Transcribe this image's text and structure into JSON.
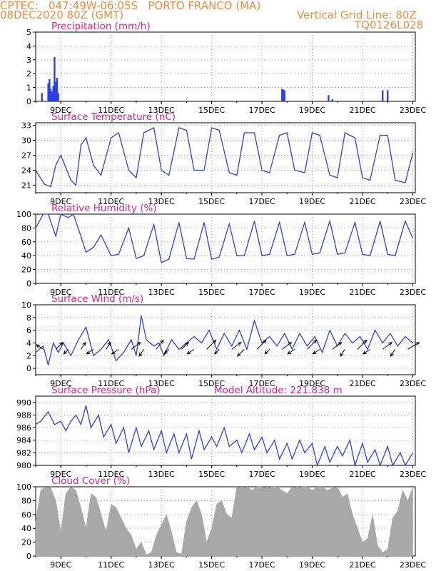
{
  "header": {
    "line1": "CPTEC:   047:49W-06:05S   PORTO FRANCO (MA)",
    "line2": "08DEC2020 80Z (GMT)",
    "grid_note": "Vertical Grid Line: 80Z",
    "code": "TQ0126L028"
  },
  "colors": {
    "header": "#f08a3c",
    "title": "#e0208a",
    "series": "#2a40e6",
    "cloud": "#a8a8a8",
    "wind_arrow": "#000000"
  },
  "x_axis": {
    "ticks": [
      "9DEC",
      "11DEC",
      "13DEC",
      "15DEC",
      "17DEC",
      "19DEC",
      "21DEC",
      "23DEC"
    ],
    "tick_days": [
      1,
      3,
      5,
      7,
      9,
      11,
      13,
      15
    ],
    "range_days": [
      0,
      15.1
    ]
  },
  "chart_data": [
    {
      "id": "precip",
      "type": "bar",
      "title": "Precipitation (mm/h)",
      "ylim": [
        0,
        5
      ],
      "yticks": [
        0,
        1,
        2,
        3,
        4,
        5
      ],
      "x": [
        0.25,
        0.5,
        0.55,
        0.6,
        0.65,
        0.7,
        0.75,
        0.8,
        0.85,
        0.9,
        1.0,
        4.0,
        7.0,
        9.8,
        9.85,
        9.9,
        11.65,
        11.8,
        13.8,
        14.0
      ],
      "values": [
        0.6,
        1.3,
        1.6,
        0.9,
        0.7,
        1.1,
        3.2,
        1.4,
        1.7,
        0.6,
        0.05,
        0.05,
        0.05,
        0.9,
        0.85,
        0.8,
        0.45,
        0.15,
        0.8,
        0.8
      ]
    },
    {
      "id": "temp",
      "type": "line",
      "title": "Surface Temperature (nC)",
      "ylim": [
        19.5,
        33.5
      ],
      "yticks": [
        21,
        24,
        27,
        30,
        33
      ],
      "x": [
        0.0,
        0.35,
        0.6,
        0.8,
        1.0,
        1.4,
        1.6,
        1.8,
        2.0,
        2.3,
        2.6,
        3.0,
        3.3,
        3.7,
        4.0,
        4.3,
        4.7,
        5.0,
        5.3,
        5.7,
        6.0,
        6.3,
        6.7,
        7.0,
        7.3,
        7.7,
        8.0,
        8.3,
        8.7,
        9.0,
        9.3,
        9.7,
        10.0,
        10.3,
        10.7,
        11.0,
        11.3,
        11.7,
        12.0,
        12.3,
        12.7,
        13.0,
        13.3,
        13.7,
        14.0,
        14.3,
        14.7,
        15.0
      ],
      "values": [
        24.0,
        21.2,
        20.7,
        25.0,
        27.0,
        22.0,
        21.0,
        29.0,
        30.5,
        25.0,
        23.0,
        30.5,
        31.5,
        24.0,
        22.5,
        31.5,
        32.5,
        24.0,
        23.0,
        32.5,
        32.0,
        24.0,
        24.0,
        32.5,
        32.0,
        23.5,
        23.0,
        31.5,
        31.5,
        24.0,
        23.5,
        31.0,
        31.5,
        24.0,
        23.5,
        31.5,
        31.0,
        23.0,
        22.5,
        31.5,
        30.5,
        22.5,
        22.0,
        31.0,
        31.0,
        22.0,
        21.5,
        27.5
      ]
    },
    {
      "id": "rh",
      "type": "line",
      "title": "Relative Humidity (%)",
      "ylim": [
        0,
        100
      ],
      "yticks": [
        0,
        20,
        40,
        60,
        80,
        100
      ],
      "x": [
        0.0,
        0.3,
        0.5,
        0.8,
        1.0,
        1.3,
        1.5,
        1.8,
        2.0,
        2.3,
        2.6,
        3.0,
        3.3,
        3.7,
        4.0,
        4.3,
        4.7,
        5.0,
        5.3,
        5.7,
        6.0,
        6.3,
        6.7,
        7.0,
        7.3,
        7.7,
        8.0,
        8.3,
        8.7,
        9.0,
        9.3,
        9.7,
        10.0,
        10.3,
        10.7,
        11.0,
        11.3,
        11.7,
        12.0,
        12.3,
        12.7,
        13.0,
        13.3,
        13.7,
        14.0,
        14.3,
        14.7,
        15.0
      ],
      "values": [
        80,
        100,
        100,
        68,
        100,
        95,
        100,
        68,
        45,
        52,
        70,
        40,
        42,
        80,
        36,
        40,
        85,
        30,
        35,
        88,
        36,
        35,
        88,
        35,
        38,
        86,
        40,
        40,
        90,
        40,
        42,
        88,
        40,
        42,
        88,
        42,
        44,
        90,
        42,
        44,
        88,
        42,
        40,
        90,
        42,
        40,
        90,
        65
      ]
    },
    {
      "id": "wind",
      "type": "line",
      "title": "Surface Wind (m/s)",
      "ylim": [
        -1,
        10
      ],
      "yticks": [
        0,
        2,
        4,
        6,
        8,
        10
      ],
      "x": [
        0.0,
        0.3,
        0.5,
        0.7,
        0.9,
        1.1,
        1.4,
        1.7,
        2.0,
        2.3,
        2.6,
        2.9,
        3.2,
        3.5,
        3.8,
        4.0,
        4.2,
        4.4,
        4.7,
        4.9,
        5.1,
        5.4,
        5.7,
        6.0,
        6.3,
        6.6,
        6.9,
        7.2,
        7.5,
        7.8,
        8.1,
        8.4,
        8.7,
        9.0,
        9.3,
        9.6,
        9.9,
        10.2,
        10.5,
        10.8,
        11.1,
        11.4,
        11.7,
        12.0,
        12.3,
        12.6,
        12.9,
        13.2,
        13.5,
        13.8,
        14.1,
        14.4,
        14.7,
        15.0
      ],
      "values": [
        2.5,
        3.5,
        0.5,
        4.0,
        2.5,
        4.0,
        2.0,
        4.5,
        6.5,
        2.0,
        3.0,
        4.5,
        1.2,
        2.5,
        4.5,
        2.0,
        8.3,
        4.5,
        3.5,
        4.0,
        2.0,
        4.5,
        3.0,
        4.0,
        5.0,
        4.0,
        6.0,
        3.0,
        5.5,
        3.5,
        6.0,
        3.0,
        7.5,
        4.0,
        5.0,
        3.5,
        5.5,
        3.0,
        5.5,
        3.5,
        5.0,
        2.5,
        6.0,
        3.5,
        5.5,
        4.0,
        5.0,
        3.0,
        6.0,
        4.0,
        5.5,
        3.5,
        5.0,
        4.0
      ],
      "arrows_x": [
        0.3,
        0.8,
        1.3,
        1.8,
        2.3,
        2.8,
        3.3,
        3.8,
        4.3,
        4.8,
        5.3,
        5.8,
        6.3,
        6.8,
        7.3,
        7.8,
        8.3,
        8.8,
        9.3,
        9.8,
        10.3,
        10.8,
        11.3,
        11.8,
        12.3,
        12.8,
        13.3,
        13.8,
        14.3,
        14.8
      ],
      "arrows_u": [
        -3,
        3,
        -2,
        2,
        -3,
        2,
        -3,
        4,
        -2,
        3,
        -2,
        3,
        -3,
        4,
        -2,
        4,
        -3,
        4,
        -2,
        4,
        -3,
        4,
        -3,
        4,
        -2,
        4,
        -3,
        4,
        -2,
        5
      ],
      "arrows_v": [
        2,
        3,
        -2,
        3,
        -2,
        3,
        -2,
        3,
        -3,
        4,
        -2,
        3,
        -2,
        4,
        -2,
        3,
        -3,
        4,
        -2,
        3,
        -2,
        4,
        -2,
        3,
        -3,
        4,
        -2,
        3,
        -3,
        3
      ]
    },
    {
      "id": "pres",
      "type": "line",
      "title": "Surface Pressure (hPa)",
      "subtitle": "Model Altitude: 221.838 m",
      "ylim": [
        980,
        991
      ],
      "yticks": [
        980,
        982,
        984,
        986,
        988,
        990
      ],
      "x": [
        0.0,
        0.2,
        0.5,
        0.75,
        1.0,
        1.2,
        1.4,
        1.6,
        1.8,
        2.0,
        2.2,
        2.5,
        2.7,
        3.0,
        3.2,
        3.5,
        3.7,
        4.0,
        4.2,
        4.5,
        4.7,
        5.0,
        5.2,
        5.5,
        5.7,
        6.0,
        6.2,
        6.5,
        6.7,
        7.0,
        7.2,
        7.5,
        7.7,
        8.0,
        8.2,
        8.5,
        8.7,
        9.0,
        9.2,
        9.5,
        9.7,
        10.0,
        10.2,
        10.5,
        10.7,
        11.0,
        11.2,
        11.5,
        11.7,
        12.0,
        12.2,
        12.5,
        12.7,
        13.0,
        13.2,
        13.5,
        13.7,
        14.0,
        14.2,
        14.5,
        14.7,
        15.0
      ],
      "values": [
        986.5,
        987.0,
        988.5,
        986.5,
        987.0,
        985.5,
        987.0,
        988.0,
        986.5,
        989.5,
        986.0,
        988.0,
        984.5,
        986.5,
        983.5,
        986.0,
        982.0,
        986.0,
        983.0,
        985.5,
        982.5,
        985.5,
        982.0,
        985.0,
        982.0,
        985.0,
        981.0,
        985.5,
        982.5,
        984.5,
        983.0,
        986.0,
        983.0,
        984.0,
        982.0,
        985.0,
        982.5,
        984.5,
        982.0,
        984.0,
        981.0,
        983.5,
        981.0,
        984.0,
        982.0,
        983.5,
        980.0,
        983.0,
        980.5,
        983.0,
        981.5,
        984.0,
        980.0,
        983.5,
        980.5,
        982.5,
        980.0,
        983.0,
        980.0,
        982.0,
        980.0,
        982.0
      ]
    },
    {
      "id": "cloud",
      "type": "area",
      "title": "Cloud Cover (%)",
      "ylim": [
        0,
        100
      ],
      "yticks": [
        0,
        20,
        40,
        60,
        80,
        100
      ],
      "x": [
        0.0,
        0.2,
        0.4,
        0.6,
        0.8,
        1.0,
        1.2,
        1.4,
        1.6,
        1.8,
        2.0,
        2.2,
        2.4,
        2.6,
        2.8,
        3.0,
        3.2,
        3.4,
        3.6,
        3.8,
        4.0,
        4.2,
        4.4,
        4.6,
        4.8,
        5.0,
        5.2,
        5.4,
        5.6,
        5.8,
        6.0,
        6.2,
        6.4,
        6.6,
        6.8,
        7.0,
        7.2,
        7.4,
        7.6,
        7.8,
        8.0,
        8.2,
        8.4,
        8.6,
        8.8,
        9.0,
        9.2,
        9.4,
        9.6,
        9.8,
        10.0,
        10.2,
        10.4,
        10.6,
        10.8,
        11.0,
        11.2,
        11.4,
        11.6,
        11.8,
        12.0,
        12.2,
        12.4,
        12.6,
        12.8,
        13.0,
        13.2,
        13.4,
        13.6,
        13.8,
        14.0,
        14.2,
        14.4,
        14.6,
        14.8,
        15.0
      ],
      "values": [
        50,
        95,
        100,
        98,
        80,
        35,
        90,
        100,
        95,
        70,
        40,
        90,
        85,
        60,
        35,
        75,
        70,
        55,
        40,
        30,
        10,
        20,
        2,
        5,
        30,
        45,
        60,
        35,
        5,
        3,
        50,
        70,
        80,
        60,
        20,
        40,
        75,
        80,
        60,
        55,
        100,
        98,
        100,
        95,
        100,
        100,
        98,
        100,
        100,
        95,
        90,
        100,
        98,
        100,
        100,
        95,
        100,
        100,
        95,
        98,
        100,
        85,
        90,
        60,
        40,
        20,
        25,
        60,
        15,
        5,
        10,
        55,
        65,
        95,
        80,
        100
      ]
    }
  ]
}
